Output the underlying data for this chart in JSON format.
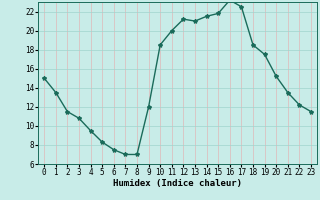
{
  "x": [
    0,
    1,
    2,
    3,
    4,
    5,
    6,
    7,
    8,
    9,
    10,
    11,
    12,
    13,
    14,
    15,
    16,
    17,
    18,
    19,
    20,
    21,
    22,
    23
  ],
  "y": [
    15.0,
    13.5,
    11.5,
    10.8,
    9.5,
    8.3,
    7.5,
    7.0,
    7.0,
    12.0,
    18.5,
    20.0,
    21.2,
    21.0,
    21.5,
    21.8,
    23.2,
    22.5,
    18.5,
    17.5,
    15.2,
    13.5,
    12.2,
    11.5
  ],
  "line_color": "#1a6b5a",
  "marker": "*",
  "marker_size": 3,
  "bg_color": "#c8ece8",
  "hgrid_color": "#a0d4ce",
  "vgrid_color": "#e0b8b8",
  "xlabel": "Humidex (Indice chaleur)",
  "ylim": [
    6,
    23
  ],
  "xlim": [
    -0.5,
    23.5
  ],
  "yticks": [
    6,
    8,
    10,
    12,
    14,
    16,
    18,
    20,
    22
  ],
  "xticks": [
    0,
    1,
    2,
    3,
    4,
    5,
    6,
    7,
    8,
    9,
    10,
    11,
    12,
    13,
    14,
    15,
    16,
    17,
    18,
    19,
    20,
    21,
    22,
    23
  ],
  "tick_fontsize": 5.5,
  "xlabel_fontsize": 6.5,
  "line_width": 1.0
}
